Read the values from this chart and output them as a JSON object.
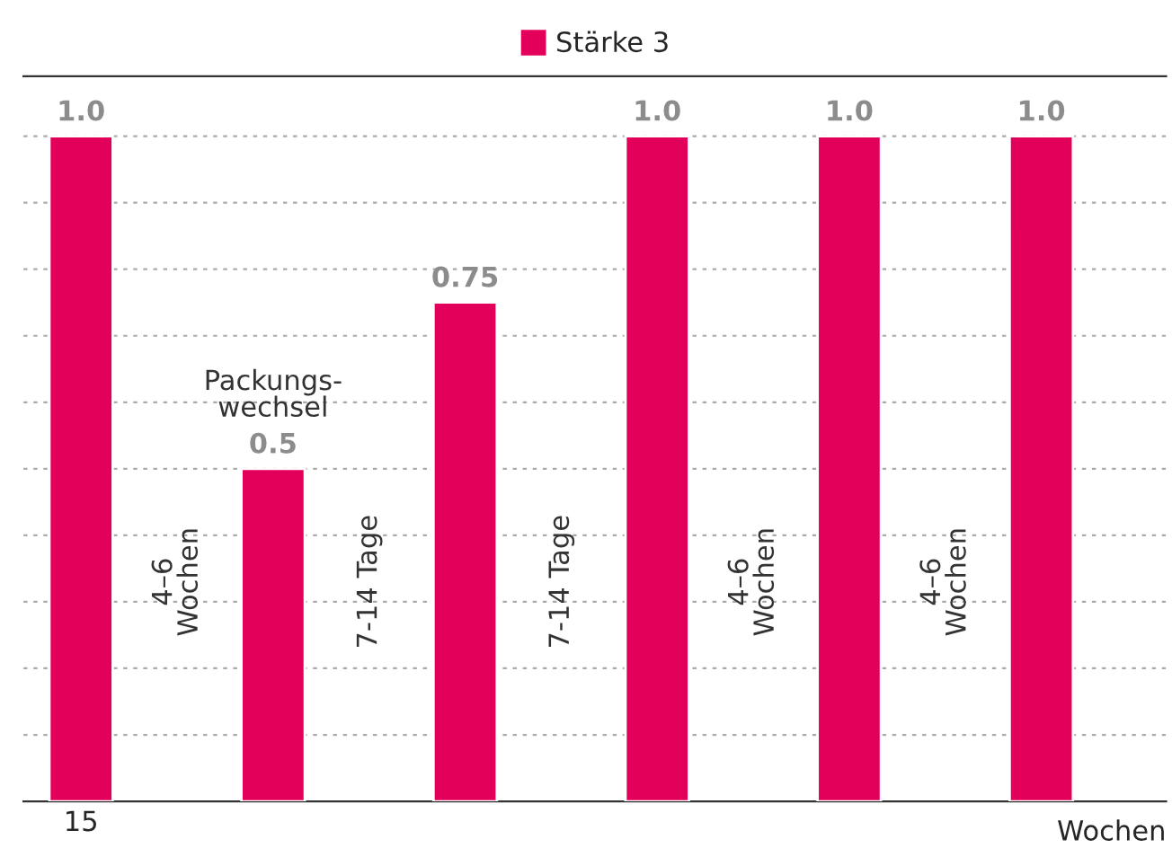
{
  "chart_data": {
    "type": "bar",
    "categories": [
      "15",
      null,
      null,
      null,
      null,
      null
    ],
    "series": [
      {
        "name": "Stärke 3",
        "color": "#e3005a",
        "values": [
          1.0,
          0.5,
          0.75,
          1.0,
          1.0,
          1.0
        ],
        "value_labels": [
          "1.0",
          "0.5",
          "0.75",
          "1.0",
          "1.0",
          "1.0"
        ]
      }
    ],
    "xlabel": "Wochen",
    "ylim": [
      0,
      1.09
    ],
    "yticks": [
      {
        "value": 0.1,
        "label": null
      },
      {
        "value": 0.2,
        "label": null
      },
      {
        "value": 0.3,
        "label": null
      },
      {
        "value": 0.4,
        "label": null
      },
      {
        "value": 0.5,
        "label": null
      },
      {
        "value": 0.6,
        "label": null
      },
      {
        "value": 0.7,
        "label": null
      },
      {
        "value": 0.8,
        "label": null
      },
      {
        "value": 0.9,
        "label": null
      },
      {
        "value": 1.0,
        "label": null
      }
    ],
    "grid": "y",
    "legend": "top",
    "annotations": [
      "4–6\nWochen",
      "7-14 Tage",
      "7-14 Tage",
      "4–6\nWochen",
      "4–6\nWochen",
      "Packungs-\nwechsel"
    ]
  }
}
